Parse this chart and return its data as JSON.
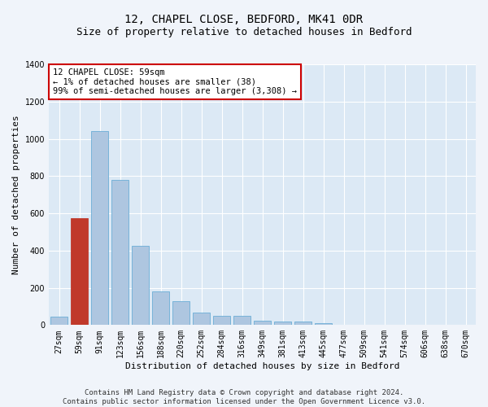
{
  "title": "12, CHAPEL CLOSE, BEDFORD, MK41 0DR",
  "subtitle": "Size of property relative to detached houses in Bedford",
  "xlabel": "Distribution of detached houses by size in Bedford",
  "ylabel": "Number of detached properties",
  "bar_color": "#aec6e0",
  "bar_edge_color": "#6baed6",
  "highlight_bar_index": 1,
  "highlight_color": "#c0392b",
  "highlight_edge_color": "#c0392b",
  "background_color": "#dce9f5",
  "fig_background_color": "#f0f4fa",
  "annotation_text": "12 CHAPEL CLOSE: 59sqm\n← 1% of detached houses are smaller (38)\n99% of semi-detached houses are larger (3,308) →",
  "annotation_box_facecolor": "#ffffff",
  "annotation_box_edgecolor": "#cc0000",
  "categories": [
    "27sqm",
    "59sqm",
    "91sqm",
    "123sqm",
    "156sqm",
    "188sqm",
    "220sqm",
    "252sqm",
    "284sqm",
    "316sqm",
    "349sqm",
    "381sqm",
    "413sqm",
    "445sqm",
    "477sqm",
    "509sqm",
    "541sqm",
    "574sqm",
    "606sqm",
    "638sqm",
    "670sqm"
  ],
  "values": [
    45,
    575,
    1040,
    780,
    425,
    180,
    128,
    68,
    50,
    50,
    22,
    18,
    18,
    12,
    3,
    0,
    0,
    0,
    0,
    0,
    0
  ],
  "ylim": [
    0,
    1400
  ],
  "yticks": [
    0,
    200,
    400,
    600,
    800,
    1000,
    1200,
    1400
  ],
  "footer_text": "Contains HM Land Registry data © Crown copyright and database right 2024.\nContains public sector information licensed under the Open Government Licence v3.0.",
  "title_fontsize": 10,
  "subtitle_fontsize": 9,
  "axis_label_fontsize": 8,
  "tick_fontsize": 7,
  "annotation_fontsize": 7.5,
  "footer_fontsize": 6.5
}
